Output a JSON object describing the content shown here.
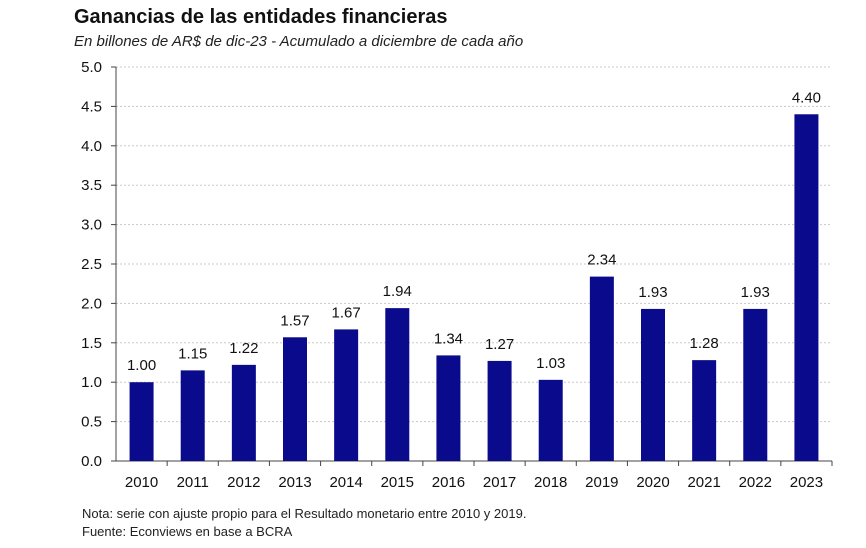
{
  "chart_data": {
    "type": "bar",
    "title": "Ganancias de las entidades financieras",
    "subtitle": "En billones de AR$ de dic-23 - Acumulado a diciembre de cada año",
    "categories": [
      "2010",
      "2011",
      "2012",
      "2013",
      "2014",
      "2015",
      "2016",
      "2017",
      "2018",
      "2019",
      "2020",
      "2021",
      "2022",
      "2023"
    ],
    "values": [
      1.0,
      1.15,
      1.22,
      1.57,
      1.67,
      1.94,
      1.34,
      1.27,
      1.03,
      2.34,
      1.93,
      1.28,
      1.93,
      4.4
    ],
    "data_labels": [
      "1.00",
      "1.15",
      "1.22",
      "1.57",
      "1.67",
      "1.94",
      "1.34",
      "1.27",
      "1.03",
      "2.34",
      "1.93",
      "1.28",
      "1.93",
      "4.40"
    ],
    "y_ticks": [
      "0.0",
      "0.5",
      "1.0",
      "1.5",
      "2.0",
      "2.5",
      "3.0",
      "3.5",
      "4.0",
      "4.5",
      "5.0"
    ],
    "ylim": [
      0,
      5
    ],
    "xlabel": "",
    "ylabel": "",
    "grid": true,
    "bar_color": "#0a0a8c"
  },
  "notes": {
    "nota": "Nota: serie con ajuste propio para el Resultado monetario entre 2010 y 2019.",
    "fuente": "Fuente: Econviews en base a BCRA"
  }
}
